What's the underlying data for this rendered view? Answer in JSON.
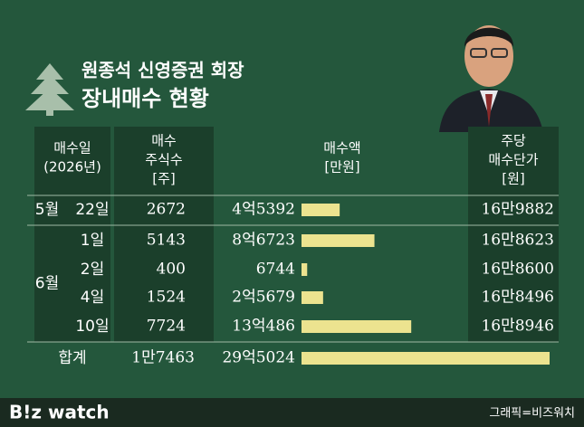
{
  "chart_data": {
    "type": "bar",
    "subtitle": "원종석 신영증권 회장",
    "title": "장내매수 현황",
    "columns": [
      [
        "매수일",
        "(2026년)"
      ],
      [
        "매수",
        "주식수",
        "[주]"
      ],
      [
        "매수액",
        "[만원]"
      ],
      [
        "주당",
        "매수단가",
        "[원]"
      ]
    ],
    "months": [
      "5월",
      "6월"
    ],
    "categories": [
      "22일",
      "1일",
      "2일",
      "4일",
      "10일"
    ],
    "shares": [
      2672,
      5143,
      400,
      1524,
      7724
    ],
    "values": [
      45392,
      86723,
      6744,
      25679,
      130486
    ],
    "value_labels": [
      "4억5392",
      "8억6723",
      "6744",
      "2억5679",
      "13억486"
    ],
    "unit_prices": [
      169882,
      168623,
      168600,
      168496,
      168946
    ],
    "unit_price_labels": [
      "16만9882",
      "16만8623",
      "16만8600",
      "16만8496",
      "16만8946"
    ],
    "total": {
      "label": "합계",
      "shares": 17463,
      "shares_label": "1만7463",
      "value": 295024,
      "value_label": "29억5024"
    },
    "color": "#ece38f",
    "footer": {
      "brand": "B!z watch",
      "credit": "그래픽=비즈워치"
    }
  }
}
